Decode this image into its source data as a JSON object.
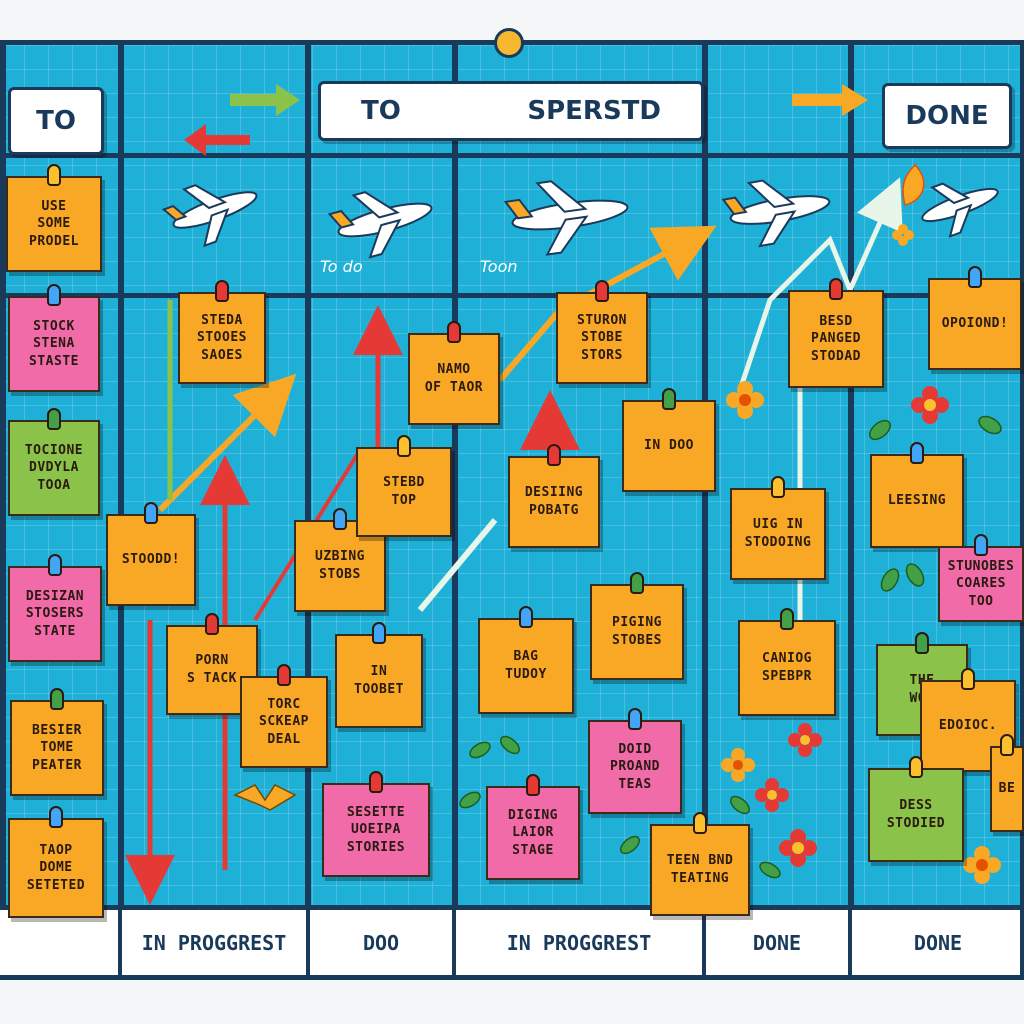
{
  "header": {
    "left_label": "TO",
    "center_left": "TO",
    "center_right": "SPERSTD",
    "right_label": "DONE"
  },
  "scribbles": {
    "a": "To do",
    "b": "Toon"
  },
  "footer": [
    "IN PROGGREST",
    "DOO",
    "IN PROGGREST",
    "DONE",
    "DONE"
  ],
  "notes": [
    {
      "text": "USE\nSOME\nPRODEL",
      "color": "orange",
      "pin": "yellow"
    },
    {
      "text": "STOCK\nSTENA\nSTASTE",
      "color": "pink",
      "pin": "blue"
    },
    {
      "text": "TOCIONE\nDVDYLA\nTOOA",
      "color": "green",
      "pin": "green"
    },
    {
      "text": "DESIZAN\nSTOSERS\nSTATE",
      "color": "pink",
      "pin": "blue"
    },
    {
      "text": "BESIER\nTOME\nPEATER",
      "color": "orange",
      "pin": "green"
    },
    {
      "text": "TAOP\nDOME\nSETETED",
      "color": "orange",
      "pin": "blue"
    },
    {
      "text": "STEDA\nSTOOES\nSAOES",
      "color": "orange",
      "pin": "red"
    },
    {
      "text": "STOODD!",
      "color": "orange",
      "pin": "blue"
    },
    {
      "text": "PORN\nS TACK",
      "color": "orange",
      "pin": "red"
    },
    {
      "text": "TORC\nSCKEAP\nDEAL",
      "color": "orange",
      "pin": "red"
    },
    {
      "text": "UZBING\nSTOBS",
      "color": "orange",
      "pin": "blue"
    },
    {
      "text": "STEBD\nTOP",
      "color": "orange",
      "pin": "yellow"
    },
    {
      "text": "NAMO\nOF TAOR",
      "color": "orange",
      "pin": "red"
    },
    {
      "text": "IN\nTOOBET",
      "color": "orange",
      "pin": "blue"
    },
    {
      "text": "SESETTE\nUOEIPA\nSTORIES",
      "color": "pink",
      "pin": "red"
    },
    {
      "text": "STURON\nSTOBE\nSTORS",
      "color": "orange",
      "pin": "red"
    },
    {
      "text": "DESIING\nPOBATG",
      "color": "orange",
      "pin": "red"
    },
    {
      "text": "BAG\nTUDOY",
      "color": "orange",
      "pin": "blue"
    },
    {
      "text": "DIGING\nLAIOR\nSTAGE",
      "color": "pink",
      "pin": "red"
    },
    {
      "text": "IN DOO",
      "color": "orange",
      "pin": "green"
    },
    {
      "text": "PIGING\nSTOBES",
      "color": "orange",
      "pin": "green"
    },
    {
      "text": "DOID\nPROAND\nTEAS",
      "color": "pink",
      "pin": "blue"
    },
    {
      "text": "TEEN BND\nTEATING",
      "color": "orange",
      "pin": "yellow"
    },
    {
      "text": "BESD\nPANGED\nSTODAD",
      "color": "orange",
      "pin": "red"
    },
    {
      "text": "UIG IN\nSTODOING",
      "color": "orange",
      "pin": "yellow"
    },
    {
      "text": "CANIOG\nSPEBPR",
      "color": "orange",
      "pin": "green"
    },
    {
      "text": "OPOIOND!",
      "color": "orange",
      "pin": "blue"
    },
    {
      "text": "LEESING",
      "color": "orange",
      "pin": "blue"
    },
    {
      "text": "STUNOBES\nCOARES\nTOO",
      "color": "pink",
      "pin": "blue"
    },
    {
      "text": "THE\nWOI",
      "color": "green",
      "pin": "green"
    },
    {
      "text": "EDOIOC.",
      "color": "orange",
      "pin": "yellow"
    },
    {
      "text": "DESS\nSTODIED",
      "color": "green",
      "pin": "yellow"
    },
    {
      "text": "BE",
      "color": "orange",
      "pin": "yellow"
    }
  ]
}
